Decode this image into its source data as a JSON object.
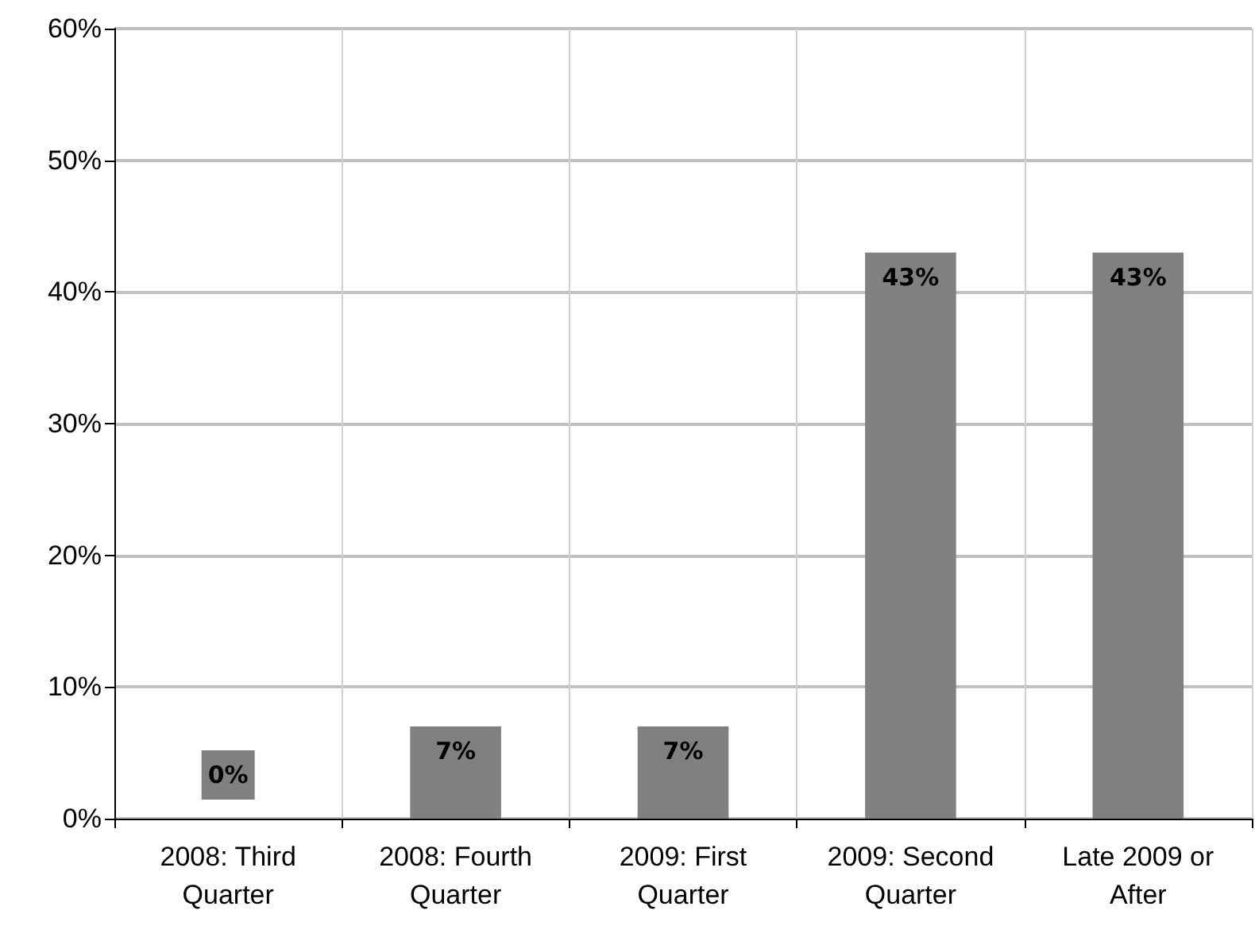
{
  "chart_data": {
    "type": "bar",
    "categories": [
      "2008: Third\nQuarter",
      "2008: Fourth\nQuarter",
      "2009: First\nQuarter",
      "2009: Second\nQuarter",
      "Late 2009 or\nAfter"
    ],
    "values": [
      0,
      7,
      7,
      43,
      43
    ],
    "color": "#808080",
    "value_labels": [
      "0%",
      "7%",
      "7%",
      "43%",
      "43%"
    ],
    "ylim": [
      0,
      60
    ],
    "yticks": [
      {
        "value": 0,
        "label": "0%"
      },
      {
        "value": 10,
        "label": "10%"
      },
      {
        "value": 20,
        "label": "20%"
      },
      {
        "value": 30,
        "label": "30%"
      },
      {
        "value": 40,
        "label": "40%"
      },
      {
        "value": 50,
        "label": "50%"
      },
      {
        "value": 60,
        "label": "60%"
      }
    ],
    "grid": true
  }
}
